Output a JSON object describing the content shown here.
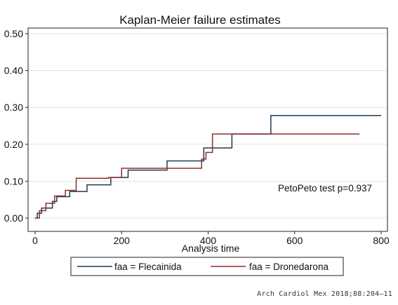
{
  "chart_data": {
    "type": "line",
    "title": "Kaplan-Meier failure estimates",
    "xlabel": "Analysis time",
    "ylabel": "",
    "xlim": [
      0,
      800
    ],
    "ylim": [
      0,
      0.5
    ],
    "xticks": [
      "0",
      "200",
      "400",
      "600",
      "800"
    ],
    "yticks": [
      "0.00",
      "0.10",
      "0.20",
      "0.30",
      "0.40",
      "0.50"
    ],
    "grid": "horizontal",
    "legend_position": "bottom",
    "annotation": "PetoPeto test p=0.937",
    "series": [
      {
        "name": "faa = Flecainida",
        "color": "#1d3a52",
        "step": true,
        "x": [
          0,
          5,
          15,
          40,
          50,
          80,
          120,
          175,
          215,
          305,
          390,
          455,
          545,
          800
        ],
        "y": [
          0,
          0.013,
          0.027,
          0.045,
          0.058,
          0.072,
          0.09,
          0.11,
          0.13,
          0.155,
          0.19,
          0.228,
          0.278,
          0.278
        ]
      },
      {
        "name": "faa = Dronedarona",
        "color": "#8b2e2e",
        "step": true,
        "x": [
          0,
          10,
          25,
          45,
          70,
          95,
          170,
          200,
          385,
          395,
          410,
          750
        ],
        "y": [
          0,
          0.02,
          0.04,
          0.06,
          0.075,
          0.108,
          0.11,
          0.135,
          0.16,
          0.178,
          0.228,
          0.228
        ]
      }
    ]
  },
  "footer": "Arch Cardiol Mex 2018;88:204–11"
}
